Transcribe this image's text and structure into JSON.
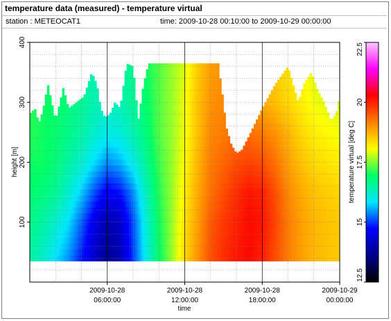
{
  "header": {
    "title": "temperature data (measured) - temperature virtual",
    "station": "station : METEOCAT1",
    "time_range": "time: 2009-10-28 00:10:00 to 2009-10-29 00:00:00"
  },
  "colors": {
    "colormap": [
      "#000000",
      "#00008b",
      "#0000ff",
      "#00e6ff",
      "#00ff66",
      "#ffff00",
      "#ff8000",
      "#ff0000",
      "#ff00ff",
      "#ffc8ff"
    ],
    "no_data": "#ffffff"
  },
  "chart_data": {
    "type": "heatmap",
    "xlabel": "time",
    "ylabel": "height [m]",
    "xlim": [
      0,
      24
    ],
    "ylim": [
      0,
      400
    ],
    "x_ticks": [
      {
        "value": 6,
        "line1": "2009-10-28",
        "line2": "06:00:00"
      },
      {
        "value": 12,
        "line1": "2009-10-28",
        "line2": "12:00:00"
      },
      {
        "value": 18,
        "line1": "2009-10-28",
        "line2": "18:00:00"
      },
      {
        "value": 24,
        "line1": "2009-10-29",
        "line2": "00:00:00"
      }
    ],
    "y_ticks": [
      100,
      200,
      300,
      400
    ],
    "grid": true,
    "colorbar": {
      "label": "temperature virtual [deg C]",
      "range": [
        12.5,
        22.5
      ],
      "ticks": [
        12.5,
        15,
        17.5,
        20,
        22.5
      ]
    },
    "height_min": 35,
    "time_step_hours": 0.1667,
    "height_step_m": 10,
    "top_height_profile": {
      "times": [
        0,
        0.4,
        0.7,
        1,
        1.4,
        2,
        2.6,
        3,
        3.6,
        4.2,
        4.8,
        5.2,
        5.5,
        5.8,
        6.2,
        6.6,
        7,
        7.5,
        8,
        8.4,
        8.8,
        9.2,
        10,
        11,
        12,
        13,
        14,
        14.6,
        15,
        15.2,
        15.6,
        16,
        16.4,
        17,
        18,
        19,
        20,
        20.8,
        21.2,
        21.8,
        22.3,
        22.8,
        23.3,
        23.7,
        24
      ],
      "heights": [
        280,
        290,
        265,
        285,
        330,
        270,
        325,
        290,
        300,
        310,
        350,
        330,
        290,
        275,
        280,
        300,
        290,
        365,
        360,
        270,
        330,
        365,
        365,
        365,
        365,
        365,
        365,
        365,
        300,
        260,
        230,
        215,
        220,
        245,
        290,
        330,
        360,
        300,
        330,
        350,
        320,
        300,
        270,
        280,
        310
      ]
    },
    "temperature_model": {
      "description": "virtual temperature field [deg C] by hour (rows) and height [m] (columns)",
      "hours": [
        0,
        1,
        2,
        3,
        4,
        5,
        6,
        7,
        8,
        9,
        10,
        11,
        12,
        13,
        14,
        15,
        16,
        17,
        18,
        19,
        20,
        21,
        22,
        23,
        24
      ],
      "heights": [
        35,
        100,
        150,
        200,
        250,
        300,
        365
      ],
      "values": [
        [
          16.5,
          16.7,
          16.9,
          17.0,
          17.1,
          17.1,
          17.0
        ],
        [
          16.2,
          16.5,
          16.8,
          17.0,
          17.0,
          17.0,
          16.9
        ],
        [
          15.8,
          16.2,
          16.6,
          16.8,
          16.9,
          16.9,
          16.8
        ],
        [
          15.4,
          15.8,
          16.2,
          16.5,
          16.7,
          16.8,
          16.7
        ],
        [
          14.8,
          15.2,
          15.7,
          16.2,
          16.5,
          16.6,
          16.5
        ],
        [
          14.2,
          14.5,
          15.1,
          15.8,
          16.2,
          16.4,
          16.4
        ],
        [
          13.6,
          13.9,
          14.6,
          15.4,
          16.0,
          16.3,
          16.4
        ],
        [
          14.0,
          14.2,
          14.8,
          15.6,
          16.1,
          16.4,
          16.5
        ],
        [
          15.0,
          15.1,
          15.4,
          16.0,
          16.4,
          16.6,
          16.7
        ],
        [
          16.0,
          16.1,
          16.3,
          16.6,
          16.8,
          16.9,
          17.0
        ],
        [
          16.9,
          17.0,
          17.1,
          17.2,
          17.3,
          17.3,
          17.3
        ],
        [
          17.6,
          17.6,
          17.6,
          17.6,
          17.6,
          17.6,
          17.6
        ],
        [
          18.4,
          18.3,
          18.2,
          18.1,
          18.0,
          18.0,
          17.9
        ],
        [
          19.0,
          18.9,
          18.8,
          18.7,
          18.6,
          18.6,
          18.5
        ],
        [
          19.6,
          19.5,
          19.3,
          19.2,
          19.1,
          19.0,
          18.9
        ],
        [
          19.9,
          19.8,
          19.6,
          19.4,
          19.2,
          19.1,
          19.0
        ],
        [
          20.1,
          20.0,
          19.9,
          19.6,
          19.3,
          19.0,
          18.9
        ],
        [
          20.2,
          20.2,
          20.1,
          19.7,
          19.3,
          18.9,
          18.8
        ],
        [
          20.0,
          20.1,
          20.0,
          19.6,
          19.2,
          18.8,
          18.7
        ],
        [
          19.6,
          19.7,
          19.6,
          19.3,
          19.0,
          18.6,
          18.5
        ],
        [
          19.2,
          19.2,
          19.1,
          18.9,
          18.7,
          18.4,
          18.3
        ],
        [
          18.9,
          18.9,
          18.8,
          18.6,
          18.4,
          18.2,
          18.1
        ],
        [
          18.7,
          18.7,
          18.6,
          18.4,
          18.2,
          18.0,
          17.9
        ],
        [
          18.6,
          18.6,
          18.5,
          18.3,
          18.1,
          17.9,
          17.8
        ],
        [
          18.5,
          18.5,
          18.4,
          18.2,
          18.0,
          17.9,
          17.8
        ]
      ]
    }
  }
}
